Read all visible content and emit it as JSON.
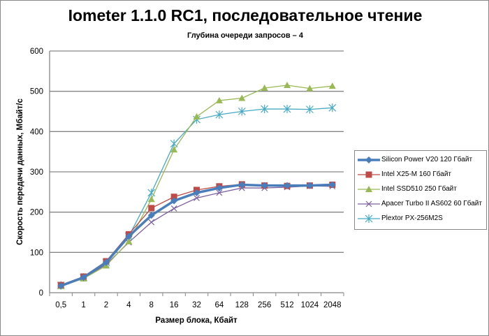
{
  "chart_data": {
    "type": "line",
    "title": "Iometer 1.1.0 RC1, последовательное чтение",
    "subtitle": "Глубина очереди запросов – 4",
    "xlabel": "Размер блока, Кбайт",
    "ylabel": "Скорость передачи данных, Мбайт/с",
    "ylim": [
      0,
      600
    ],
    "yticks": [
      "0",
      "100",
      "200",
      "300",
      "400",
      "500",
      "600"
    ],
    "categories": [
      "0,5",
      "1",
      "2",
      "4",
      "8",
      "16",
      "32",
      "64",
      "128",
      "256",
      "512",
      "1024",
      "2048"
    ],
    "grid": "horizontal",
    "legend_position": "right",
    "series": [
      {
        "name": "Silicon Power V20 120 Гбайт",
        "color": "#4a7ebb",
        "marker": "diamond",
        "values": [
          17,
          38,
          75,
          140,
          192,
          228,
          248,
          260,
          268,
          266,
          266,
          266,
          268
        ]
      },
      {
        "name": "Intel X25-M 160 Гбайт",
        "color": "#be4b48",
        "marker": "square",
        "values": [
          19,
          40,
          78,
          145,
          210,
          238,
          255,
          264,
          269,
          266,
          265,
          266,
          268
        ]
      },
      {
        "name": "Intel SSD510 250 Гбайт",
        "color": "#98b954",
        "marker": "triangle",
        "values": [
          16,
          35,
          67,
          127,
          232,
          355,
          437,
          477,
          483,
          508,
          515,
          507,
          513
        ]
      },
      {
        "name": "Apacer Turbo II AS602 60 Гбайт",
        "color": "#7d60a0",
        "marker": "x",
        "values": [
          17,
          36,
          70,
          125,
          175,
          209,
          235,
          248,
          260,
          260,
          262,
          265,
          264
        ]
      },
      {
        "name": "Plextor PX-256M2S",
        "color": "#46aac5",
        "marker": "star",
        "values": [
          18,
          38,
          75,
          140,
          248,
          370,
          430,
          442,
          450,
          456,
          456,
          455,
          459
        ]
      }
    ]
  }
}
